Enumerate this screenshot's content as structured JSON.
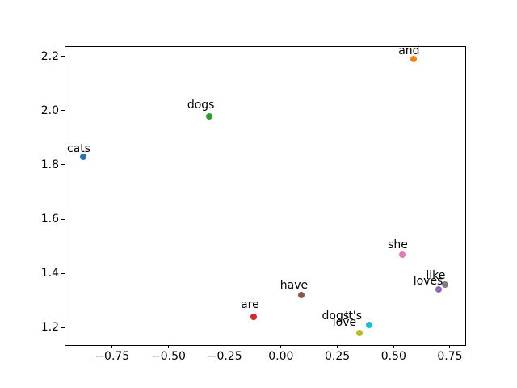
{
  "figure": {
    "background_color": "#ffffff",
    "text_color": "#000000"
  },
  "chart_data": {
    "type": "scatter",
    "title": "",
    "xlabel": "",
    "ylabel": "",
    "grid": false,
    "legend": false,
    "xlim": [
      -0.959,
      0.82
    ],
    "ylim": [
      1.135,
      2.238
    ],
    "xticks": {
      "values": [
        -0.75,
        -0.5,
        -0.25,
        0,
        0.25,
        0.5,
        0.75
      ],
      "labels": [
        "−0.75",
        "−0.50",
        "−0.25",
        "0.00",
        "0.25",
        "0.50",
        "0.75"
      ]
    },
    "yticks": {
      "values": [
        1.2,
        1.4,
        1.6,
        1.8,
        2.0,
        2.2
      ],
      "labels": [
        "1.2",
        "1.4",
        "1.6",
        "1.8",
        "2.0",
        "2.2"
      ]
    },
    "points": [
      {
        "word": "cats",
        "x": -0.88,
        "y": 1.83,
        "color": "#1f77b4",
        "label_offset": [
          -5,
          -10
        ]
      },
      {
        "word": "and",
        "x": 0.59,
        "y": 2.19,
        "color": "#ff7f0e",
        "label_offset": [
          -6,
          -10
        ]
      },
      {
        "word": "dogs",
        "x": -0.32,
        "y": 1.98,
        "color": "#2ca02c",
        "label_offset": [
          -10,
          -14
        ]
      },
      {
        "word": "are",
        "x": -0.12,
        "y": 1.24,
        "color": "#d62728",
        "label_offset": [
          -5,
          -15
        ]
      },
      {
        "word": "loves",
        "x": 0.7,
        "y": 1.34,
        "color": "#9467bd",
        "label_offset": [
          -13,
          -10
        ]
      },
      {
        "word": "have",
        "x": 0.09,
        "y": 1.32,
        "color": "#8c564b",
        "label_offset": [
          -9,
          -12
        ]
      },
      {
        "word": "she",
        "x": 0.54,
        "y": 1.47,
        "color": "#e377c2",
        "label_offset": [
          -6,
          -12
        ]
      },
      {
        "word": "like",
        "x": 0.73,
        "y": 1.36,
        "color": "#7f7f7f",
        "label_offset": [
          -12,
          -11
        ]
      },
      {
        "word": "love",
        "x": 0.35,
        "y": 1.18,
        "color": "#bcbd22",
        "label_offset": [
          -19,
          -13
        ]
      },
      {
        "word": "It's",
        "x": 0.39,
        "y": 1.21,
        "color": "#17becf",
        "label_offset": [
          -19,
          -11
        ]
      }
    ],
    "overlapping_labels": [
      {
        "text": "dogs",
        "x": 0.242,
        "y": 1.242
      }
    ]
  }
}
